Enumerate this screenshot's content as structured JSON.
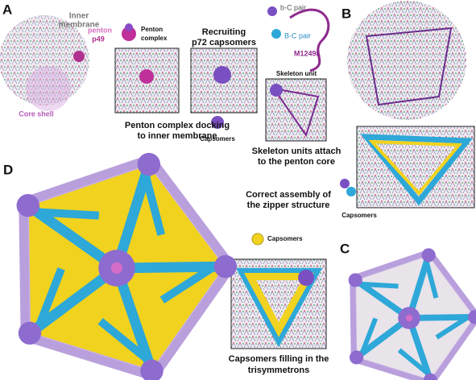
{
  "panels": {
    "a": "A",
    "b": "B",
    "c": "C",
    "d": "D"
  },
  "labels": {
    "inner_membrane": [
      "Inner",
      "membrane"
    ],
    "penton": "penton",
    "p49": "p49",
    "penton_complex": [
      "Penton",
      "complex"
    ],
    "core_shell": "Core shell",
    "recruiting": [
      "Recruiting",
      "p72 capsomers"
    ],
    "docking": [
      "Penton complex docking",
      "to inner membrane"
    ],
    "capsomers_1": "Capsomers",
    "b_c_pair_lower": "b-C pair",
    "b_c_pair_upper": "B-C pair",
    "m1249l": "M1249L",
    "skeleton_unit": "Skeleton unit",
    "skeleton_attach": [
      "Skeleton units attach",
      "to the penton core"
    ],
    "zipper": [
      "Correct assembly of",
      "the zipper structure"
    ],
    "capsomers_2": "Capsomers",
    "capsomers_3": "Capsomers",
    "filling": [
      "Capsomers filling in the",
      "trisymmetrons"
    ]
  }
}
